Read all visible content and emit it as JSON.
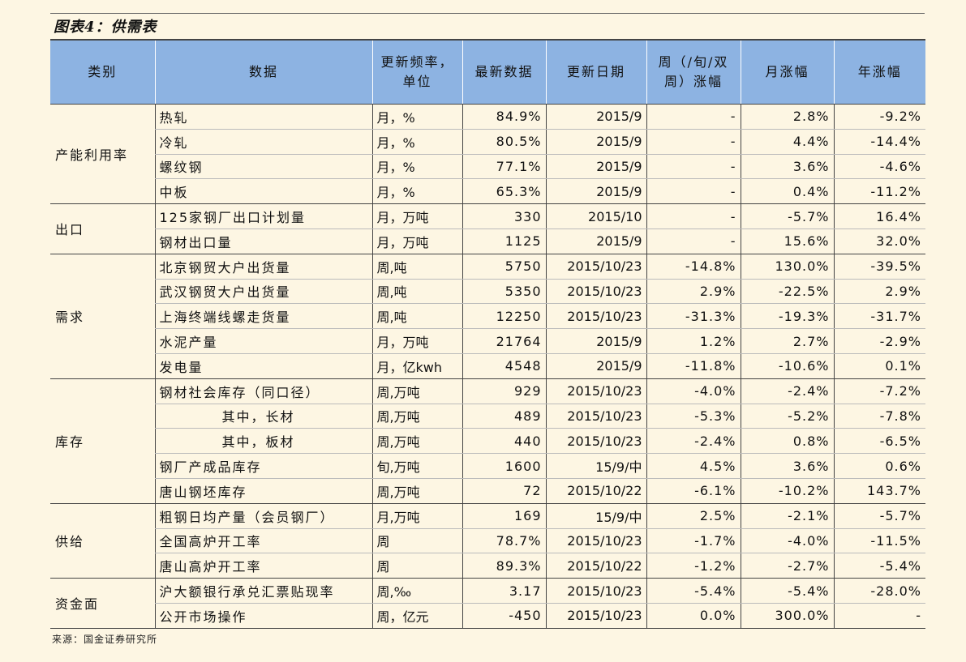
{
  "title": "图表4：供需表",
  "source": "来源：国金证券研究所",
  "headers": [
    "类别",
    "数据",
    "更新频率，单位",
    "最新数据",
    "更新日期",
    "周（/旬/双周）涨幅",
    "月涨幅",
    "年涨幅"
  ],
  "groups": [
    {
      "category": "产能利用率",
      "rows": [
        {
          "name": "热轧",
          "unit": "月，%",
          "latest": "84.9%",
          "date": "2015/9",
          "weekly": "-",
          "monthly": "2.8%",
          "yearly": "-9.2%"
        },
        {
          "name": "冷轧",
          "unit": "月，%",
          "latest": "80.5%",
          "date": "2015/9",
          "weekly": "-",
          "monthly": "4.4%",
          "yearly": "-14.4%"
        },
        {
          "name": "螺纹钢",
          "unit": "月，%",
          "latest": "77.1%",
          "date": "2015/9",
          "weekly": "-",
          "monthly": "3.6%",
          "yearly": "-4.6%"
        },
        {
          "name": "中板",
          "unit": "月，%",
          "latest": "65.3%",
          "date": "2015/9",
          "weekly": "-",
          "monthly": "0.4%",
          "yearly": "-11.2%"
        }
      ]
    },
    {
      "category": "出口",
      "rows": [
        {
          "name": "125家钢厂出口计划量",
          "unit": "月，万吨",
          "latest": "330",
          "date": "2015/10",
          "weekly": "-",
          "monthly": "-5.7%",
          "yearly": "16.4%"
        },
        {
          "name": "钢材出口量",
          "unit": "月，万吨",
          "latest": "1125",
          "date": "2015/9",
          "weekly": "-",
          "monthly": "15.6%",
          "yearly": "32.0%"
        }
      ]
    },
    {
      "category": "需求",
      "rows": [
        {
          "name": "北京钢贸大户出货量",
          "unit": "周,吨",
          "latest": "5750",
          "date": "2015/10/23",
          "weekly": "-14.8%",
          "monthly": "130.0%",
          "yearly": "-39.5%"
        },
        {
          "name": "武汉钢贸大户出货量",
          "unit": "周,吨",
          "latest": "5350",
          "date": "2015/10/23",
          "weekly": "2.9%",
          "monthly": "-22.5%",
          "yearly": "2.9%"
        },
        {
          "name": "上海终端线螺走货量",
          "unit": "周,吨",
          "latest": "12250",
          "date": "2015/10/23",
          "weekly": "-31.3%",
          "monthly": "-19.3%",
          "yearly": "-31.7%"
        },
        {
          "name": "水泥产量",
          "unit": "月，万吨",
          "latest": "21764",
          "date": "2015/9",
          "weekly": "1.2%",
          "monthly": "2.7%",
          "yearly": "-2.9%"
        },
        {
          "name": "发电量",
          "unit": "月，亿kwh",
          "latest": "4548",
          "date": "2015/9",
          "weekly": "-11.8%",
          "monthly": "-10.6%",
          "yearly": "0.1%"
        }
      ]
    },
    {
      "category": "库存",
      "rows": [
        {
          "name": "钢材社会库存（同口径）",
          "unit": "周,万吨",
          "latest": "929",
          "date": "2015/10/23",
          "weekly": "-4.0%",
          "monthly": "-2.4%",
          "yearly": "-7.2%"
        },
        {
          "name": "其中，长材",
          "indent": true,
          "unit": "周,万吨",
          "latest": "489",
          "date": "2015/10/23",
          "weekly": "-5.3%",
          "monthly": "-5.2%",
          "yearly": "-7.8%"
        },
        {
          "name": "其中，板材",
          "indent": true,
          "unit": "周,万吨",
          "latest": "440",
          "date": "2015/10/23",
          "weekly": "-2.4%",
          "monthly": "0.8%",
          "yearly": "-6.5%"
        },
        {
          "name": "钢厂产成品库存",
          "unit": "旬,万吨",
          "latest": "1600",
          "date": "15/9/中",
          "weekly": "4.5%",
          "monthly": "3.6%",
          "yearly": "0.6%"
        },
        {
          "name": "唐山钢坯库存",
          "unit": "周,万吨",
          "latest": "72",
          "date": "2015/10/22",
          "weekly": "-6.1%",
          "monthly": "-10.2%",
          "yearly": "143.7%"
        }
      ]
    },
    {
      "category": "供给",
      "rows": [
        {
          "name": "粗钢日均产量（会员钢厂）",
          "unit": "月,万吨",
          "latest": "169",
          "date": "15/9/中",
          "weekly": "2.5%",
          "monthly": "-2.1%",
          "yearly": "-5.7%"
        },
        {
          "name": "全国高炉开工率",
          "unit": "周",
          "latest": "78.7%",
          "date": "2015/10/23",
          "weekly": "-1.7%",
          "monthly": "-4.0%",
          "yearly": "-11.5%"
        },
        {
          "name": "唐山高炉开工率",
          "unit": "周",
          "latest": "89.3%",
          "date": "2015/10/22",
          "weekly": "-1.2%",
          "monthly": "-2.7%",
          "yearly": "-5.4%"
        }
      ]
    },
    {
      "category": "资金面",
      "rows": [
        {
          "name": "沪大额银行承兑汇票贴现率",
          "unit": "周,‰",
          "latest": "3.17",
          "date": "2015/10/23",
          "weekly": "-5.4%",
          "monthly": "-5.4%",
          "yearly": "-28.0%"
        },
        {
          "name": "公开市场操作",
          "unit": "周，亿元",
          "latest": "-450",
          "date": "2015/10/23",
          "weekly": "0.0%",
          "monthly": "300.0%",
          "yearly": "-"
        }
      ]
    }
  ]
}
